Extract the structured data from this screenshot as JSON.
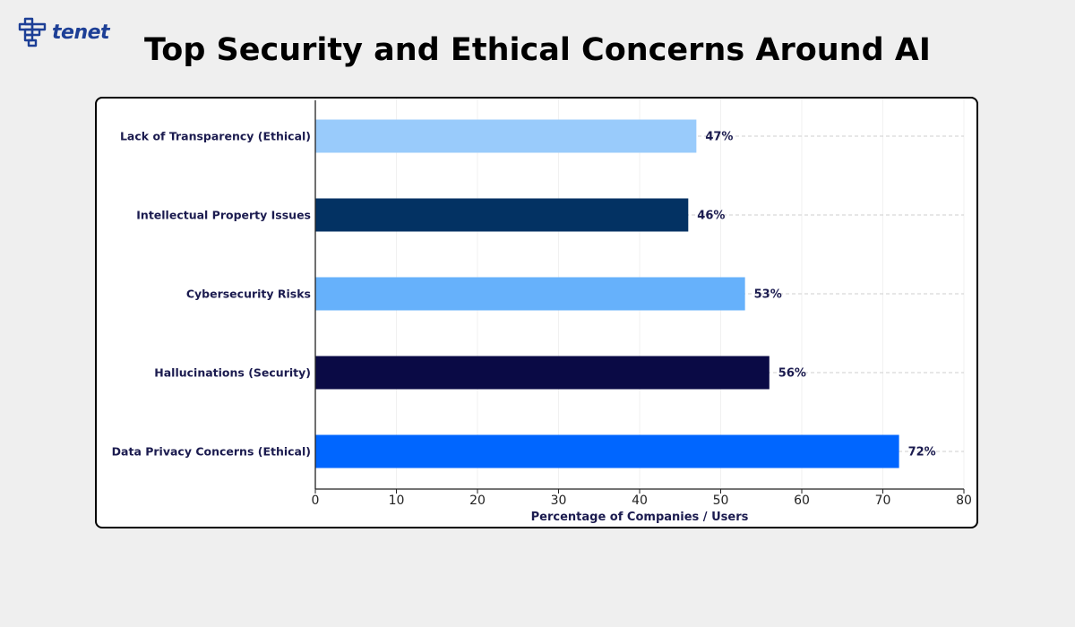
{
  "brand": {
    "name": "tenet",
    "logo_color": "#1d3f96"
  },
  "chart_data": {
    "type": "bar",
    "orientation": "horizontal",
    "title": "Top Security and Ethical Concerns Around AI",
    "xlabel": "Percentage of Companies / Users",
    "ylabel": "",
    "xlim": [
      0,
      80
    ],
    "xticks": [
      0,
      10,
      20,
      30,
      40,
      50,
      60,
      70,
      80
    ],
    "grid": "horizontal dashed",
    "bars": [
      {
        "category": "Lack of Transparency (Ethical)",
        "value": 47,
        "label": "47%",
        "color": "#99cbfb"
      },
      {
        "category": "Intellectual Property Issues",
        "value": 46,
        "label": "46%",
        "color": "#033263"
      },
      {
        "category": "Cybersecurity Risks",
        "value": 53,
        "label": "53%",
        "color": "#66b1fb"
      },
      {
        "category": "Hallucinations (Security)",
        "value": 56,
        "label": "56%",
        "color": "#0a0a45"
      },
      {
        "category": "Data Privacy Concerns (Ethical)",
        "value": 72,
        "label": "72%",
        "color": "#0066ff"
      }
    ]
  }
}
